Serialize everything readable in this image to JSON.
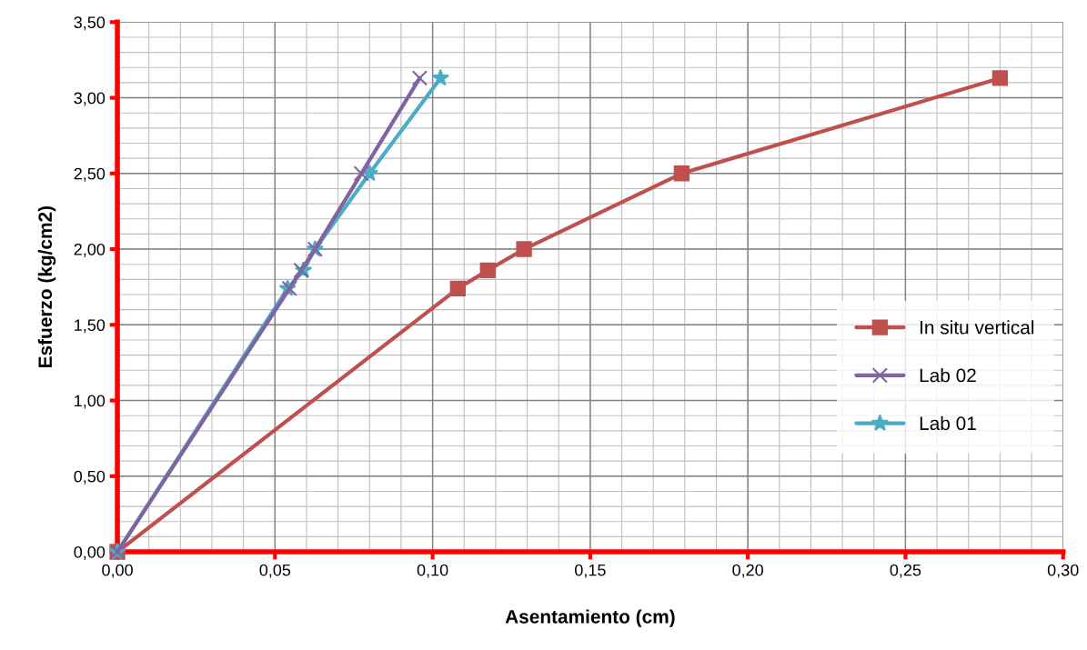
{
  "chart_data": {
    "type": "line",
    "xlabel": "Asentamiento (cm)",
    "ylabel": "Esfuerzo (kg/cm2)",
    "xlim": [
      0,
      0.3
    ],
    "xticks": [
      {
        "value": 0,
        "label": "0,00"
      },
      {
        "value": 0.05,
        "label": "0,05"
      },
      {
        "value": 0.1,
        "label": "0,10"
      },
      {
        "value": 0.15,
        "label": "0,15"
      },
      {
        "value": 0.2,
        "label": "0,20"
      },
      {
        "value": 0.25,
        "label": "0,25"
      },
      {
        "value": 0.3,
        "label": "0,30"
      }
    ],
    "ylim": [
      0,
      3.5
    ],
    "yticks": [
      {
        "value": 0,
        "label": "0,00"
      },
      {
        "value": 0.5,
        "label": "0,50"
      },
      {
        "value": 1,
        "label": "1,00"
      },
      {
        "value": 1.5,
        "label": "1,50"
      },
      {
        "value": 2,
        "label": "2,00"
      },
      {
        "value": 2.5,
        "label": "2,50"
      },
      {
        "value": 3,
        "label": "3,00"
      },
      {
        "value": 3.5,
        "label": "3,50"
      }
    ],
    "grid": true,
    "legend": "right",
    "line_style": "solid",
    "series": [
      {
        "name": "In situ vertical",
        "color": "#c0504d",
        "marker": "square",
        "x": [
          0,
          0.108,
          0.1175,
          0.129,
          0.179,
          0.28
        ],
        "values": [
          0,
          1.74,
          1.86,
          2.0,
          2.5,
          3.13
        ]
      },
      {
        "name": "Lab 02",
        "color": "#8064a2",
        "marker": "cross",
        "x": [
          0,
          0.0546,
          0.0583,
          0.0627,
          0.0774,
          0.0959
        ],
        "values": [
          0,
          1.74,
          1.86,
          2.0,
          2.5,
          3.13
        ]
      },
      {
        "name": "Lab 01",
        "color": "#4bacc6",
        "marker": "star",
        "x": [
          0,
          0.054,
          0.059,
          0.0627,
          0.08,
          0.1025
        ],
        "values": [
          0,
          1.74,
          1.86,
          2.0,
          2.5,
          3.13
        ]
      }
    ]
  }
}
